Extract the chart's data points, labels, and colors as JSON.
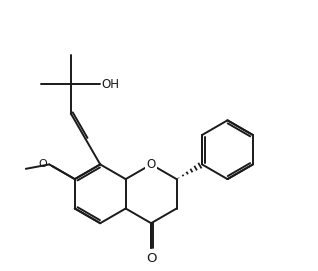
{
  "bg_color": "#ffffff",
  "line_color": "#1a1a1a",
  "line_width": 1.4,
  "fig_width": 3.18,
  "fig_height": 2.71,
  "dpi": 100,
  "oh_label": "OH",
  "o_label": "O",
  "meo_label": "O"
}
